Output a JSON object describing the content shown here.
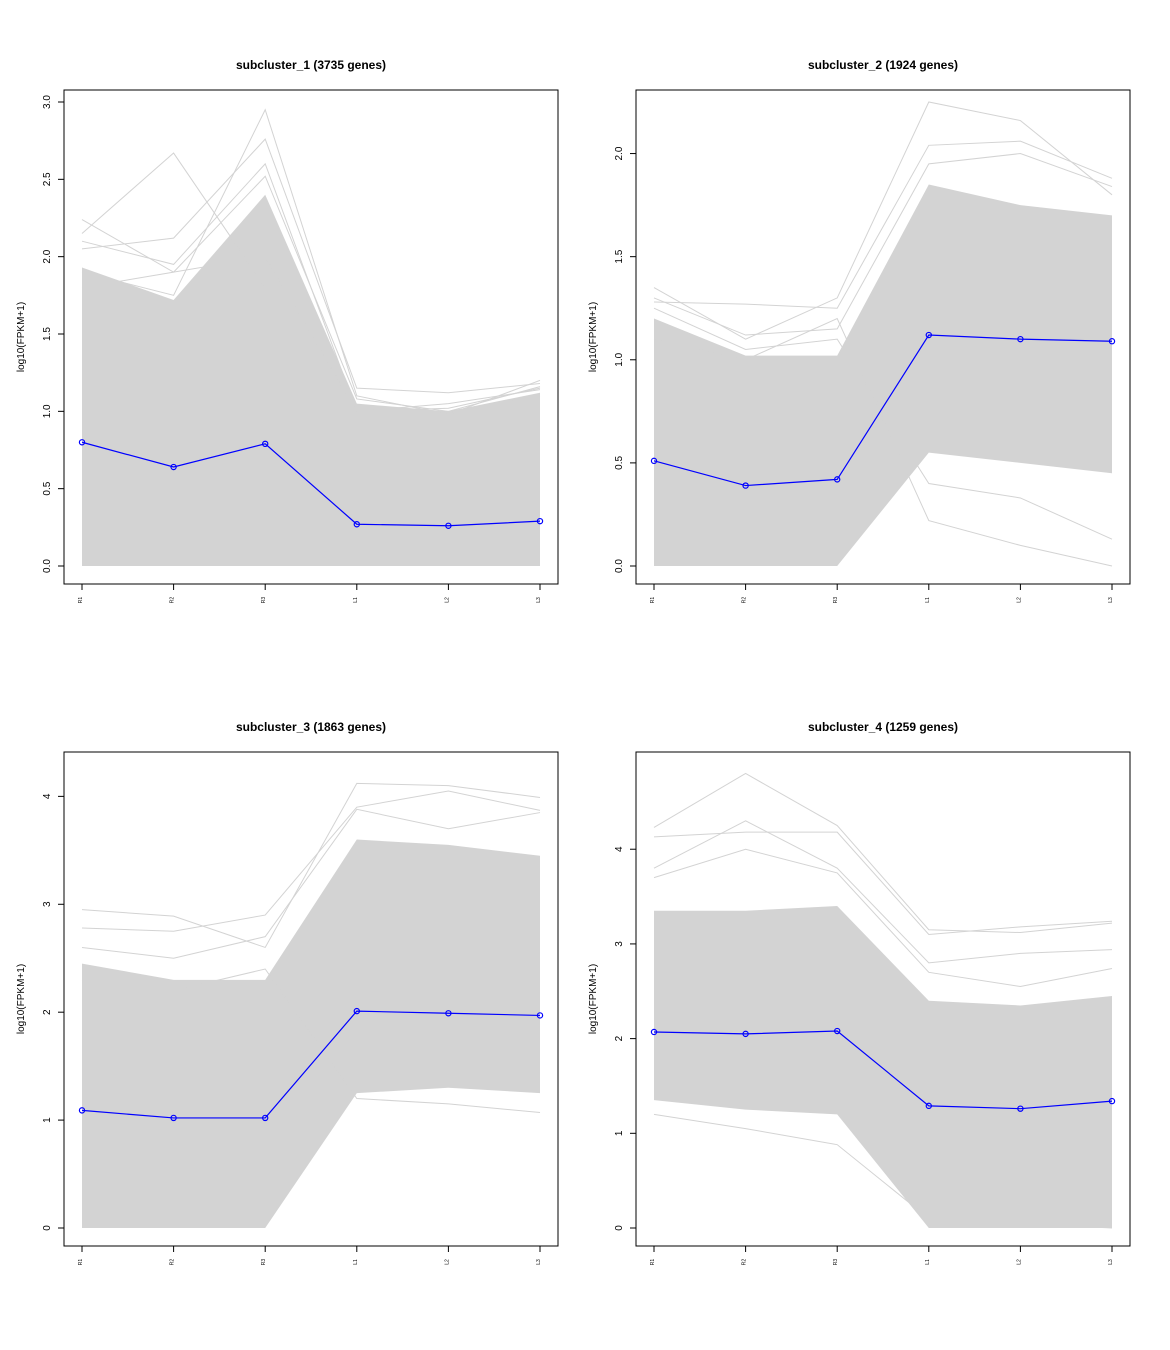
{
  "chart_data": [
    {
      "type": "line",
      "title": "subcluster_1 (3735 genes)",
      "xlabel": "",
      "ylabel": "log10(FPKM+1)",
      "categories": [
        "R1",
        "R2",
        "R3",
        "L1",
        "L2",
        "L3"
      ],
      "ylim": [
        0,
        3.0
      ],
      "yticks": [
        "0.0",
        "0.5",
        "1.0",
        "1.5",
        "2.0",
        "2.5",
        "3.0"
      ],
      "grid": false,
      "line_color": "#0000ff",
      "gene_color": "#d3d3d3",
      "series": [
        {
          "name": "",
          "values": [
            0.8,
            0.64,
            0.79,
            0.27,
            0.26,
            0.29
          ]
        }
      ],
      "band_upper": [
        1.93,
        1.72,
        2.4,
        1.05,
        1.0,
        1.12
      ],
      "band_lower": [
        0,
        0,
        0,
        0,
        0,
        0
      ],
      "outliers": [
        [
          2.24,
          1.9,
          2.0,
          1.0,
          1.0,
          1.1
        ],
        [
          2.15,
          2.67,
          1.8,
          1.0,
          1.02,
          1.15
        ],
        [
          1.9,
          1.75,
          2.95,
          1.1,
          0.98,
          1.2
        ],
        [
          2.05,
          2.12,
          2.76,
          1.15,
          1.12,
          1.18
        ],
        [
          1.8,
          1.9,
          2.52,
          1.08,
          1.0,
          1.16
        ],
        [
          2.1,
          1.95,
          2.6,
          1.0,
          1.05,
          1.14
        ]
      ]
    },
    {
      "type": "line",
      "title": "subcluster_2 (1924 genes)",
      "xlabel": "",
      "ylabel": "log10(FPKM+1)",
      "categories": [
        "R1",
        "R2",
        "R3",
        "L1",
        "L2",
        "L3"
      ],
      "ylim": [
        0,
        2.25
      ],
      "yticks": [
        "0.0",
        "0.5",
        "1.0",
        "1.5",
        "2.0"
      ],
      "grid": false,
      "line_color": "#0000ff",
      "gene_color": "#d3d3d3",
      "series": [
        {
          "name": "",
          "values": [
            0.51,
            0.39,
            0.42,
            1.12,
            1.1,
            1.09
          ]
        }
      ],
      "band_upper": [
        1.2,
        1.02,
        1.02,
        1.85,
        1.75,
        1.7
      ],
      "band_lower": [
        0,
        0,
        0,
        0.55,
        0.5,
        0.45
      ],
      "outliers": [
        [
          1.35,
          1.1,
          1.3,
          2.25,
          2.16,
          1.8
        ],
        [
          1.28,
          1.27,
          1.25,
          2.04,
          2.06,
          1.88
        ],
        [
          1.1,
          1.0,
          1.2,
          0.22,
          0.1,
          0.0
        ],
        [
          1.25,
          1.05,
          1.1,
          0.4,
          0.33,
          0.13
        ],
        [
          1.3,
          1.12,
          1.15,
          1.95,
          2.0,
          1.84
        ]
      ]
    },
    {
      "type": "line",
      "title": "subcluster_3 (1863 genes)",
      "xlabel": "",
      "ylabel": "log10(FPKM+1)",
      "categories": [
        "R1",
        "R2",
        "R3",
        "L1",
        "L2",
        "L3"
      ],
      "ylim": [
        0,
        4.3
      ],
      "yticks": [
        "0",
        "1",
        "2",
        "3",
        "4"
      ],
      "grid": false,
      "line_color": "#0000ff",
      "gene_color": "#d3d3d3",
      "series": [
        {
          "name": "",
          "values": [
            1.09,
            1.02,
            1.02,
            2.01,
            1.99,
            1.97
          ]
        }
      ],
      "band_upper": [
        2.45,
        2.3,
        2.3,
        3.6,
        3.55,
        3.45
      ],
      "band_lower": [
        0,
        0,
        0,
        1.25,
        1.3,
        1.25
      ],
      "outliers": [
        [
          2.95,
          2.89,
          2.6,
          4.12,
          4.1,
          3.99
        ],
        [
          2.78,
          2.75,
          2.9,
          3.9,
          4.05,
          3.87
        ],
        [
          2.6,
          2.5,
          2.7,
          3.88,
          3.7,
          3.85
        ],
        [
          2.3,
          2.2,
          2.4,
          1.2,
          1.15,
          1.07
        ]
      ]
    },
    {
      "type": "line",
      "title": "subcluster_4 (1259 genes)",
      "xlabel": "",
      "ylabel": "log10(FPKM+1)",
      "categories": [
        "R1",
        "R2",
        "R3",
        "L1",
        "L2",
        "L3"
      ],
      "ylim": [
        0,
        4.9
      ],
      "yticks": [
        "0",
        "1",
        "2",
        "3",
        "4"
      ],
      "grid": false,
      "line_color": "#0000ff",
      "gene_color": "#d3d3d3",
      "series": [
        {
          "name": "",
          "values": [
            2.07,
            2.05,
            2.08,
            1.29,
            1.26,
            1.34
          ]
        }
      ],
      "band_upper": [
        3.35,
        3.35,
        3.4,
        2.4,
        2.35,
        2.45
      ],
      "band_lower": [
        1.35,
        1.25,
        1.2,
        0,
        0,
        0
      ],
      "outliers": [
        [
          4.23,
          4.8,
          4.25,
          3.15,
          3.12,
          3.22
        ],
        [
          4.13,
          4.18,
          4.18,
          3.1,
          3.18,
          3.24
        ],
        [
          3.8,
          4.3,
          3.8,
          2.8,
          2.9,
          2.94
        ],
        [
          1.2,
          1.05,
          0.88,
          0.1,
          0.05,
          0.0
        ],
        [
          3.7,
          4.0,
          3.75,
          2.7,
          2.55,
          2.74
        ]
      ]
    }
  ]
}
